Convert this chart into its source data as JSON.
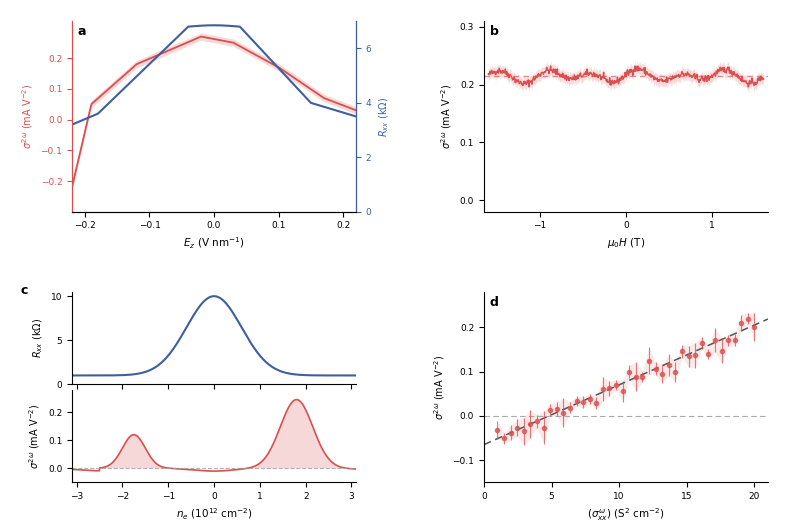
{
  "fig_width": 8.0,
  "fig_height": 5.3,
  "dpi": 100,
  "bg_color": "#ffffff",
  "panel_a": {
    "label": "a",
    "xlim": [
      -0.22,
      0.22
    ],
    "ylim_left": [
      -0.3,
      0.32
    ],
    "ylim_right": [
      0,
      7
    ],
    "xticks": [
      -0.2,
      -0.1,
      0.0,
      0.1,
      0.2
    ],
    "yticks_left": [
      -0.2,
      -0.1,
      0.0,
      0.1,
      0.2
    ],
    "yticks_right": [
      0,
      2,
      4,
      6
    ],
    "red_color": "#d94f4f",
    "blue_color": "#3d5fa0"
  },
  "panel_b": {
    "label": "b",
    "xlim": [
      -1.65,
      1.65
    ],
    "ylim": [
      -0.02,
      0.31
    ],
    "xticks": [
      -1,
      0,
      1
    ],
    "yticks": [
      0.0,
      0.1,
      0.2,
      0.3
    ],
    "dashed_val": 0.215,
    "red_color": "#d94f4f"
  },
  "panel_c_top": {
    "xlim": [
      -3.1,
      3.1
    ],
    "ylim": [
      0,
      10.5
    ],
    "yticks": [
      0,
      5,
      10
    ],
    "blue_color": "#3d5fa0"
  },
  "panel_c_bot": {
    "label": "c",
    "xlim": [
      -3.1,
      3.1
    ],
    "ylim": [
      -0.05,
      0.28
    ],
    "xticks": [
      -3,
      -2,
      -1,
      0,
      1,
      2,
      3
    ],
    "yticks": [
      0.0,
      0.1,
      0.2
    ],
    "red_color": "#d94f4f"
  },
  "panel_d": {
    "label": "d",
    "xlim": [
      0,
      21
    ],
    "ylim": [
      -0.15,
      0.28
    ],
    "xticks": [
      0,
      5,
      10,
      15,
      20
    ],
    "yticks": [
      -0.1,
      0.0,
      0.1,
      0.2
    ],
    "red_color": "#d94f4f",
    "dashed_slope": 0.0135,
    "dashed_intercept": -0.065
  }
}
